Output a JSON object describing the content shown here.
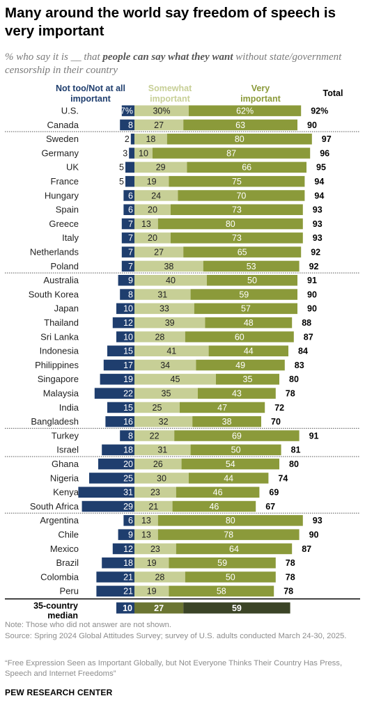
{
  "title": "Many around the world say freedom of speech is very important",
  "subtitle": {
    "before": "% who say it is __ that ",
    "bold": "people can say what they want",
    "after": " without state/government censorship in their country"
  },
  "colors": {
    "not_important": "#1f3e6e",
    "somewhat": "#c7cf96",
    "very": "#8b9a3a",
    "median_very": "#3b4426",
    "median_somewhat": "#6b7532"
  },
  "chart_data": {
    "type": "bar",
    "stacked": "diverging",
    "series_names": [
      "Not too/Not at all important",
      "Somewhat important",
      "Very important",
      "Total"
    ],
    "categories": [
      "U.S.",
      "Canada",
      "Sweden",
      "Germany",
      "UK",
      "France",
      "Hungary",
      "Spain",
      "Greece",
      "Italy",
      "Netherlands",
      "Poland",
      "Australia",
      "South Korea",
      "Japan",
      "Thailand",
      "Sri Lanka",
      "Indonesia",
      "Philippines",
      "Singapore",
      "Malaysia",
      "India",
      "Bangladesh",
      "Turkey",
      "Israel",
      "Ghana",
      "Nigeria",
      "Kenya",
      "South Africa",
      "Argentina",
      "Chile",
      "Mexico",
      "Brazil",
      "Colombia",
      "Peru"
    ],
    "not_important": [
      7,
      8,
      2,
      3,
      5,
      5,
      6,
      6,
      7,
      7,
      7,
      7,
      9,
      8,
      10,
      12,
      10,
      15,
      17,
      19,
      22,
      15,
      16,
      8,
      18,
      20,
      25,
      31,
      29,
      6,
      9,
      12,
      18,
      21,
      21
    ],
    "somewhat": [
      30,
      27,
      18,
      10,
      29,
      19,
      24,
      20,
      13,
      20,
      27,
      38,
      40,
      31,
      33,
      39,
      28,
      41,
      34,
      45,
      35,
      25,
      32,
      22,
      31,
      26,
      30,
      23,
      21,
      13,
      13,
      23,
      19,
      28,
      19
    ],
    "very": [
      62,
      63,
      80,
      87,
      66,
      75,
      70,
      73,
      80,
      73,
      65,
      53,
      50,
      59,
      57,
      48,
      60,
      44,
      49,
      35,
      43,
      47,
      38,
      69,
      50,
      54,
      44,
      46,
      46,
      80,
      78,
      64,
      59,
      50,
      58
    ],
    "total": [
      92,
      90,
      97,
      96,
      95,
      94,
      94,
      93,
      93,
      93,
      92,
      92,
      91,
      90,
      90,
      88,
      87,
      84,
      83,
      80,
      78,
      72,
      70,
      91,
      81,
      80,
      74,
      69,
      67,
      93,
      90,
      87,
      78,
      78,
      78
    ],
    "first_row_suffix": "%",
    "median": {
      "label": "35-country median",
      "not_important": 10,
      "somewhat": 27,
      "very": 59
    },
    "region_breaks_after": [
      1,
      11,
      22,
      24,
      28
    ]
  },
  "note": "Note: Those who did not answer are not shown.",
  "source": "Source: Spring 2024 Global Attitudes Survey; survey of U.S. adults conducted March 24-30, 2025.",
  "report": "“Free Expression Seen as Important Globally, but Not Everyone Thinks Their Country Has Press, Speech and Internet Freedoms”",
  "brand": "PEW RESEARCH CENTER"
}
